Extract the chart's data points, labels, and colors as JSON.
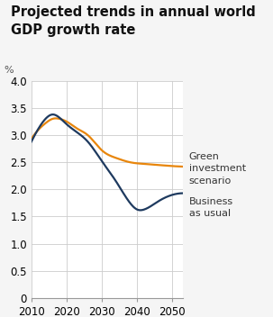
{
  "title": "Projected trends in annual world\nGDP growth rate",
  "ylabel": "%",
  "xlim": [
    2010,
    2053
  ],
  "ylim": [
    0,
    4.0
  ],
  "xticks": [
    2010,
    2020,
    2030,
    2040,
    2050
  ],
  "yticks": [
    0,
    0.5,
    1.0,
    1.5,
    2.0,
    2.5,
    3.0,
    3.5,
    4.0
  ],
  "ytick_labels": [
    "0",
    "0.5",
    "1.0",
    "1.5",
    "2.0",
    "2.5",
    "3.0",
    "3.5",
    "4.0"
  ],
  "green_label": "Green\ninvestment\nscenario",
  "blue_label": "Business\nas usual",
  "green_color": "#e8860c",
  "blue_color": "#1e3a5f",
  "background_color": "#f5f5f5",
  "plot_bg_color": "#ffffff",
  "grid_color": "#cccccc",
  "green_x": [
    2010,
    2012,
    2014,
    2016,
    2018,
    2020,
    2023,
    2026,
    2030,
    2034,
    2038,
    2042,
    2046,
    2050,
    2053
  ],
  "green_y": [
    2.93,
    3.1,
    3.22,
    3.3,
    3.3,
    3.25,
    3.12,
    3.0,
    2.72,
    2.58,
    2.5,
    2.47,
    2.45,
    2.43,
    2.42
  ],
  "blue_x": [
    2010,
    2012,
    2014,
    2016,
    2018,
    2020,
    2023,
    2026,
    2030,
    2034,
    2038,
    2040,
    2042,
    2046,
    2050,
    2053
  ],
  "blue_y": [
    2.88,
    3.12,
    3.3,
    3.38,
    3.32,
    3.2,
    3.05,
    2.88,
    2.52,
    2.15,
    1.75,
    1.63,
    1.63,
    1.78,
    1.9,
    1.93
  ],
  "title_fontsize": 10.5,
  "label_fontsize": 8,
  "tick_fontsize": 8.5,
  "annot_fontsize": 8
}
